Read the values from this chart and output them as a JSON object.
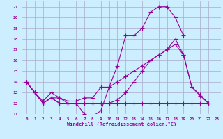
{
  "bg_color": "#cceeff",
  "grid_color": "#aaaacc",
  "line_color": "#990099",
  "xlabel": "Windchill (Refroidissement éolien,°C)",
  "ylim": [
    11,
    21.5
  ],
  "xlim": [
    -0.5,
    23.5
  ],
  "yticks": [
    11,
    12,
    13,
    14,
    15,
    16,
    17,
    18,
    19,
    20,
    21
  ],
  "xticks": [
    0,
    1,
    2,
    3,
    4,
    5,
    6,
    7,
    8,
    9,
    10,
    11,
    12,
    13,
    14,
    15,
    16,
    17,
    18,
    19,
    20,
    21,
    22,
    23
  ],
  "series": [
    [
      14.0,
      13.0,
      12.0,
      12.5,
      12.5,
      12.0,
      12.0,
      11.0,
      10.8,
      11.3,
      13.5,
      15.5,
      18.3,
      18.3,
      19.0,
      20.5,
      21.0,
      21.0,
      20.0,
      18.3,
      null,
      null,
      null,
      null
    ],
    [
      14.0,
      13.0,
      12.0,
      12.5,
      12.0,
      12.0,
      12.0,
      12.0,
      12.0,
      12.0,
      12.0,
      12.0,
      12.0,
      12.0,
      12.0,
      12.0,
      12.0,
      12.0,
      12.0,
      12.0,
      12.0,
      12.0,
      12.0,
      null
    ],
    [
      14.0,
      13.0,
      12.2,
      13.0,
      12.5,
      12.2,
      12.2,
      12.5,
      12.5,
      13.5,
      13.5,
      14.0,
      14.5,
      15.0,
      15.5,
      16.0,
      16.5,
      17.0,
      17.5,
      16.5,
      13.5,
      12.8,
      12.0,
      null
    ],
    [
      14.0,
      13.0,
      12.0,
      12.5,
      12.0,
      12.0,
      12.0,
      12.0,
      12.0,
      12.0,
      12.0,
      12.3,
      13.0,
      14.0,
      15.0,
      16.0,
      16.5,
      17.0,
      18.0,
      16.5,
      13.5,
      12.7,
      12.0,
      null
    ]
  ]
}
